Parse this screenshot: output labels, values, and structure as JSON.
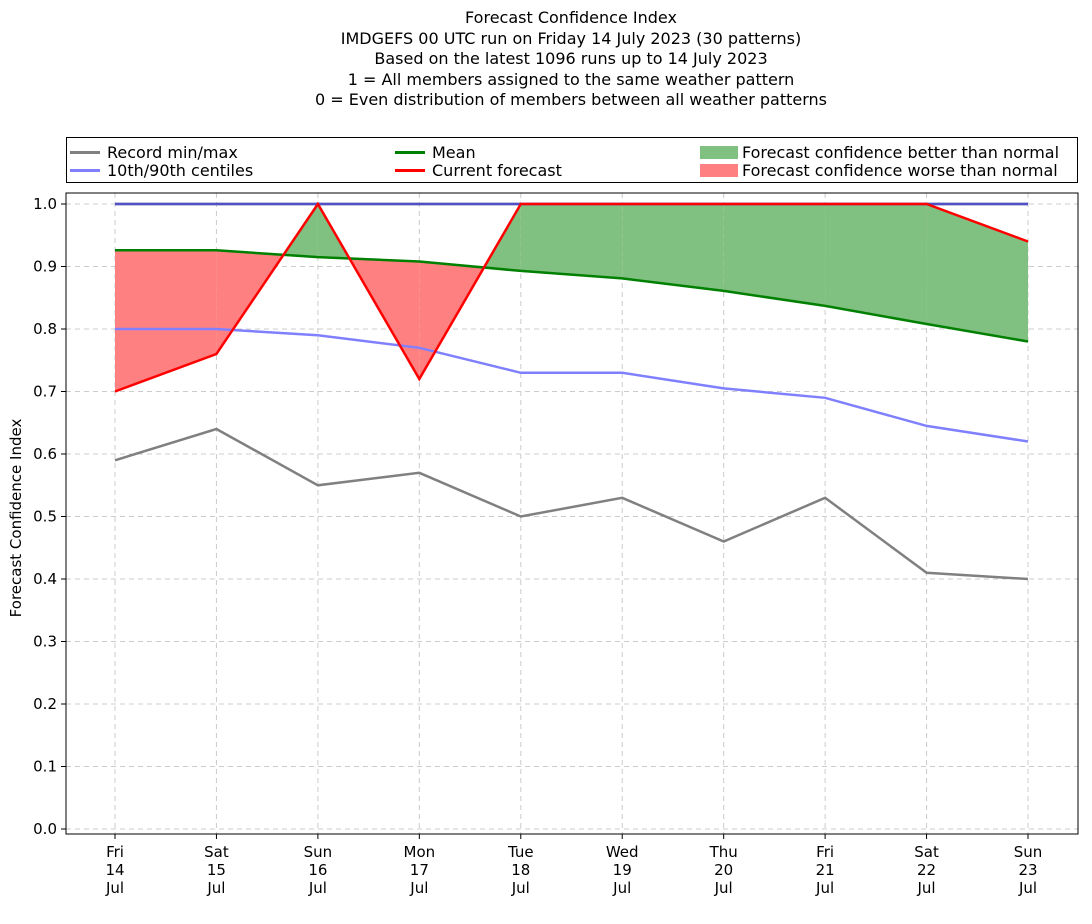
{
  "titles": [
    "Forecast Confidence Index",
    "IMDGEFS 00 UTC run on Friday 14 July 2023 (30 patterns)",
    "Based on the latest 1096 runs up to 14 July 2023",
    "1 = All members assigned to the same weather pattern",
    "0 = Even distribution of members between all weather patterns"
  ],
  "legend": {
    "record": "Record min/max",
    "centiles": "10th/90th centiles",
    "mean": "Mean",
    "current": "Current forecast",
    "better": "Forecast confidence better than normal",
    "worse": "Forecast confidence worse than normal"
  },
  "chart_data": {
    "type": "line",
    "ylabel": "Forecast Confidence Index",
    "ylim": [
      0,
      1
    ],
    "yticks": [
      "0.0",
      "0.1",
      "0.2",
      "0.3",
      "0.4",
      "0.5",
      "0.6",
      "0.7",
      "0.8",
      "0.9",
      "1.0"
    ],
    "grid": true,
    "categories": [
      [
        "Fri",
        "14",
        "Jul"
      ],
      [
        "Sat",
        "15",
        "Jul"
      ],
      [
        "Sun",
        "16",
        "Jul"
      ],
      [
        "Mon",
        "17",
        "Jul"
      ],
      [
        "Tue",
        "18",
        "Jul"
      ],
      [
        "Wed",
        "19",
        "Jul"
      ],
      [
        "Thu",
        "20",
        "Jul"
      ],
      [
        "Fri",
        "21",
        "Jul"
      ],
      [
        "Sat",
        "22",
        "Jul"
      ],
      [
        "Sun",
        "23",
        "Jul"
      ]
    ],
    "series": [
      {
        "name": "Record max",
        "color": "#808080",
        "values": [
          1,
          1,
          1,
          1,
          1,
          1,
          1,
          1,
          1,
          1
        ]
      },
      {
        "name": "Record min",
        "color": "#808080",
        "values": [
          0.59,
          0.64,
          0.55,
          0.57,
          0.5,
          0.53,
          0.46,
          0.53,
          0.41,
          0.4
        ]
      },
      {
        "name": "90th centile",
        "color": "#8080ff",
        "values": [
          1,
          1,
          1,
          1,
          1,
          1,
          1,
          1,
          1,
          1
        ]
      },
      {
        "name": "10th centile",
        "color": "#8080ff",
        "values": [
          0.8,
          0.8,
          0.79,
          0.77,
          0.73,
          0.73,
          0.705,
          0.69,
          0.645,
          0.62
        ]
      },
      {
        "name": "Mean",
        "color": "#008000",
        "values": [
          0.926,
          0.926,
          0.915,
          0.908,
          0.893,
          0.881,
          0.861,
          0.837,
          0.808,
          0.78
        ]
      },
      {
        "name": "Current forecast",
        "color": "#ff0000",
        "values": [
          0.7,
          0.76,
          1.0,
          0.72,
          1.0,
          1.0,
          1.0,
          1.0,
          1.0,
          0.94
        ]
      }
    ],
    "fill_colors": {
      "better": "#80c080",
      "worse": "#ff8080"
    }
  }
}
